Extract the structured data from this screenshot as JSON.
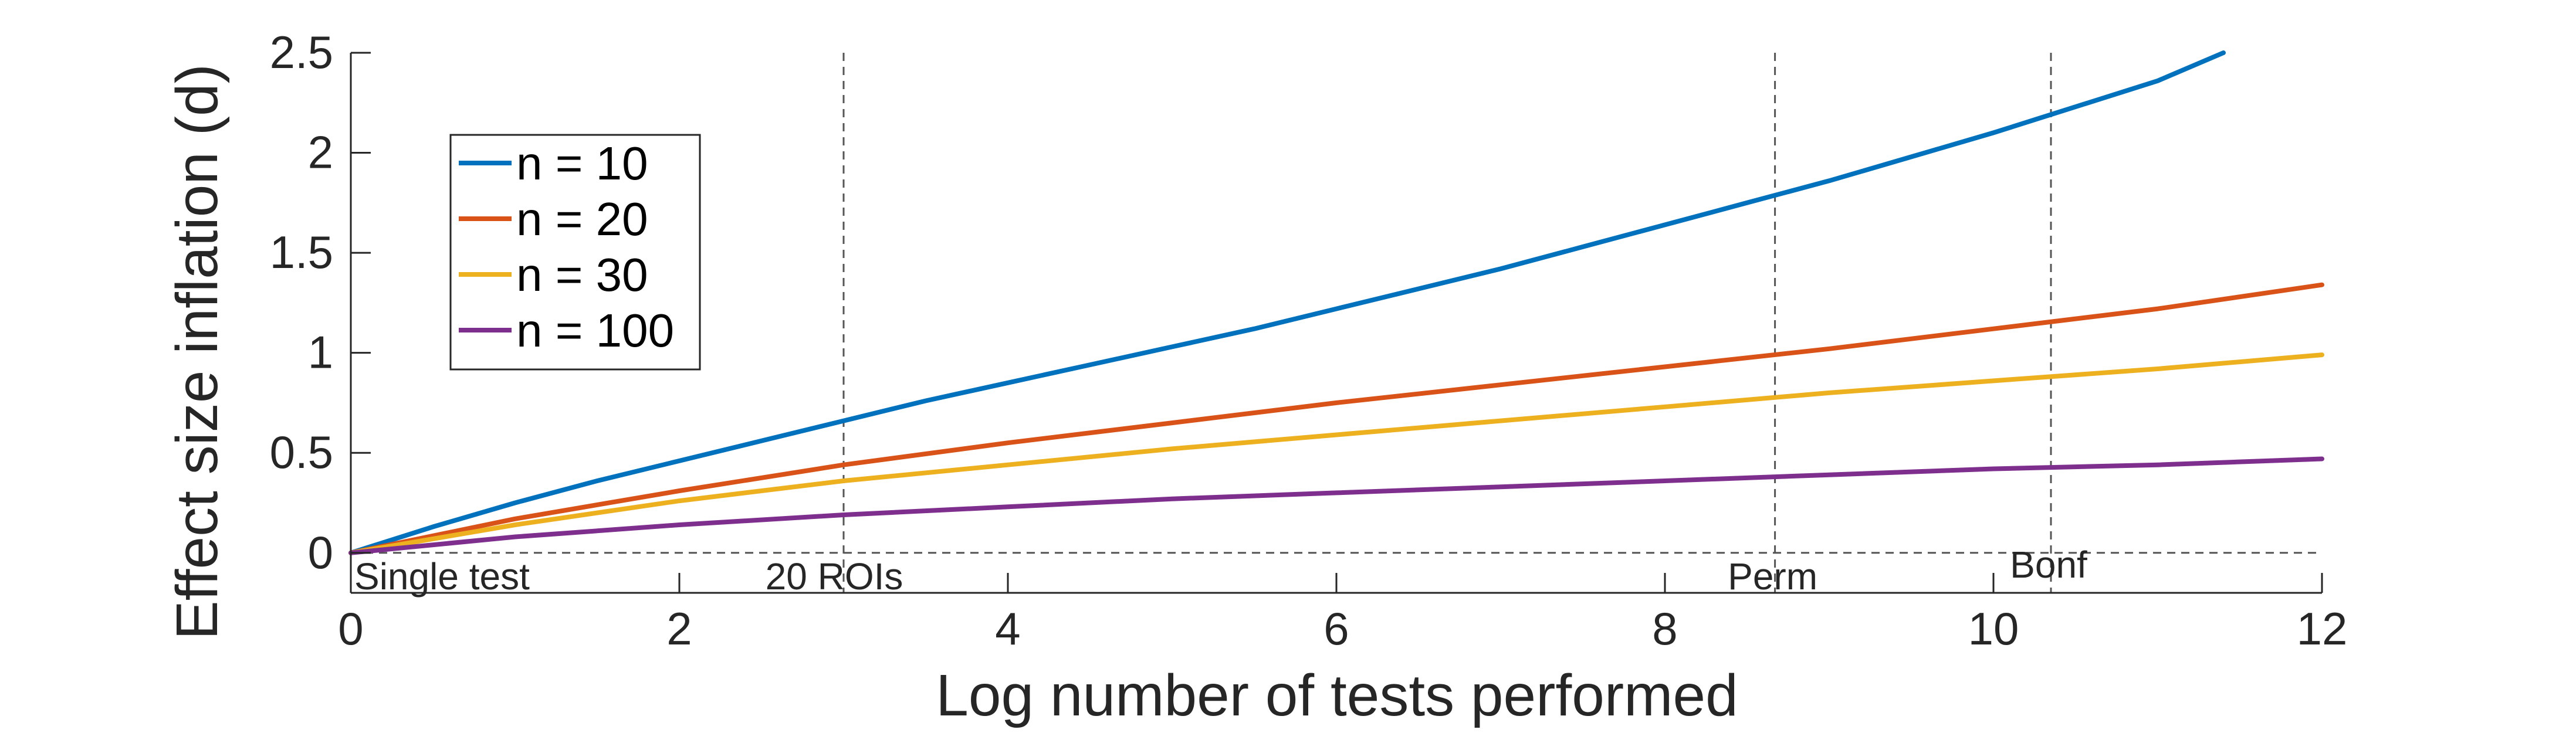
{
  "chart_data": {
    "type": "line",
    "xlabel": "Log number of tests performed",
    "ylabel": "Effect size inflation (d)",
    "xlim": [
      0,
      12
    ],
    "ylim": [
      -0.2,
      2.5
    ],
    "xticks": [
      0,
      2,
      4,
      6,
      8,
      10,
      12
    ],
    "yticks": [
      0,
      0.5,
      1,
      1.5,
      2,
      2.5
    ],
    "xtick_labels": [
      "0",
      "2",
      "4",
      "6",
      "8",
      "10",
      "12"
    ],
    "ytick_labels": [
      "0",
      "0.5",
      "1",
      "1.5",
      "2",
      "2.5"
    ],
    "grid": false,
    "legend_position": "top-left",
    "series": [
      {
        "name": "n = 10",
        "color": "#0072BD",
        "x": [
          0,
          0.5,
          1,
          1.5,
          2,
          2.5,
          3,
          3.5,
          4,
          4.5,
          5,
          5.5,
          6,
          6.5,
          7,
          7.5,
          8,
          8.5,
          9,
          9.5,
          10,
          10.5,
          11,
          11.4
        ],
        "y": [
          0,
          0.13,
          0.25,
          0.36,
          0.46,
          0.56,
          0.66,
          0.76,
          0.85,
          0.94,
          1.03,
          1.12,
          1.22,
          1.32,
          1.42,
          1.53,
          1.64,
          1.75,
          1.86,
          1.98,
          2.1,
          2.23,
          2.36,
          2.5
        ]
      },
      {
        "name": "n = 20",
        "color": "#D95319",
        "x": [
          0,
          1,
          2,
          3,
          4,
          5,
          6,
          7,
          8,
          9,
          10,
          11,
          12
        ],
        "y": [
          0,
          0.17,
          0.31,
          0.44,
          0.55,
          0.65,
          0.75,
          0.84,
          0.93,
          1.02,
          1.12,
          1.22,
          1.34
        ]
      },
      {
        "name": "n = 30",
        "color": "#EDB120",
        "x": [
          0,
          1,
          2,
          3,
          4,
          5,
          6,
          7,
          8,
          9,
          10,
          11,
          12
        ],
        "y": [
          0,
          0.14,
          0.26,
          0.36,
          0.44,
          0.52,
          0.59,
          0.66,
          0.73,
          0.8,
          0.86,
          0.92,
          0.99
        ]
      },
      {
        "name": "n = 100",
        "color": "#7E2F8E",
        "x": [
          0,
          1,
          2,
          3,
          4,
          5,
          6,
          7,
          8,
          9,
          10,
          11,
          12
        ],
        "y": [
          0,
          0.08,
          0.14,
          0.19,
          0.23,
          0.27,
          0.3,
          0.33,
          0.36,
          0.39,
          0.42,
          0.44,
          0.47
        ]
      }
    ],
    "reference_lines": [
      {
        "label": "Single test",
        "x": 0
      },
      {
        "label": "20 ROIs",
        "x": 3
      },
      {
        "label": "Perm",
        "x": 8.67
      },
      {
        "label": "Bonf",
        "x": 10.35
      }
    ],
    "zero_line": {
      "y": 0
    }
  }
}
